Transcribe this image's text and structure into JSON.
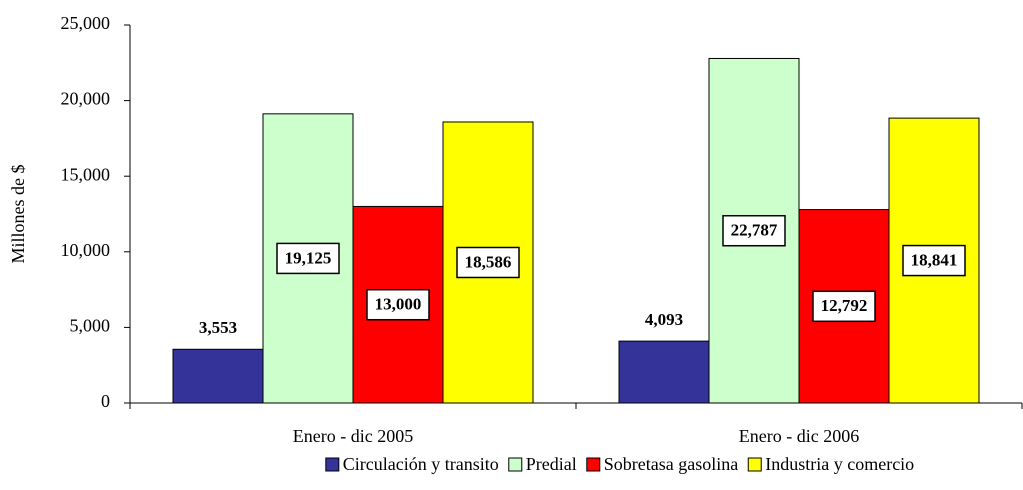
{
  "chart_data": {
    "type": "bar",
    "y_label": "Millones de $",
    "categories": [
      "Enero - dic 2005",
      "Enero - dic 2006"
    ],
    "series": [
      {
        "name": "Circulación y transito",
        "color": "#333399",
        "values": [
          3553,
          4093
        ],
        "value_labels": [
          "3,553",
          "4,093"
        ]
      },
      {
        "name": "Predial",
        "color": "#ccffcc",
        "values": [
          19125,
          22787
        ],
        "value_labels": [
          "19,125",
          "22,787"
        ]
      },
      {
        "name": "Sobretasa gasolina",
        "color": "#ff0000",
        "values": [
          13000,
          12792
        ],
        "value_labels": [
          "13,000",
          "12,792"
        ]
      },
      {
        "name": "Industria y comercio",
        "color": "#ffff00",
        "values": [
          18586,
          18841
        ],
        "value_labels": [
          "18,586",
          "18,841"
        ]
      }
    ],
    "ylim": [
      0,
      25000
    ],
    "yticks": [
      0,
      {
        "value": 5000,
        "label": "5,000"
      },
      {
        "value": 10000,
        "label": "10,000"
      },
      {
        "value": 15000,
        "label": "15,000"
      },
      {
        "value": 20000,
        "label": "20,000"
      },
      {
        "value": 25000,
        "label": "25,000"
      }
    ],
    "legend": "bottom"
  }
}
